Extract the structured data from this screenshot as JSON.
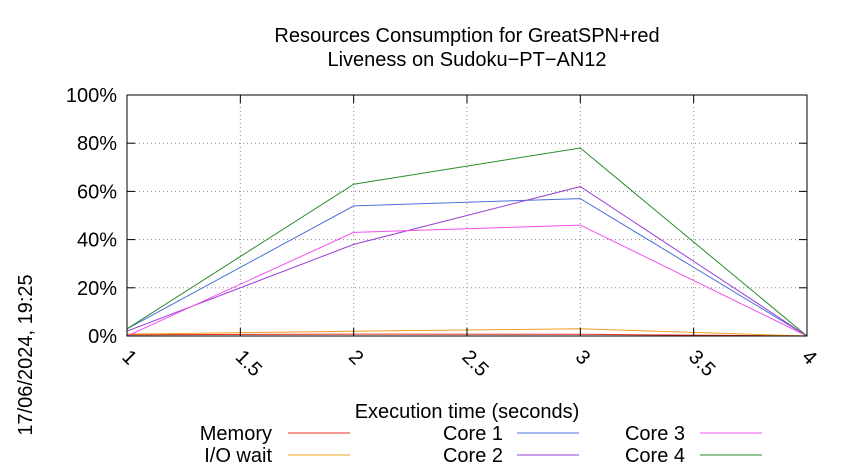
{
  "timestamp": "17/06/2024, 19:25",
  "chart_data": {
    "type": "line",
    "title_lines": [
      "Resources Consumption for GreatSPN+red",
      "Liveness on Sudoku−PT−AN12"
    ],
    "xlabel": "Execution time (seconds)",
    "ylabel": "",
    "xlim": [
      1,
      4
    ],
    "ylim": [
      0,
      100
    ],
    "x_ticks": [
      "1",
      "1.5",
      "2",
      "2.5",
      "3",
      "3.5",
      "4"
    ],
    "y_ticks": [
      "0%",
      "20%",
      "40%",
      "60%",
      "80%",
      "100%"
    ],
    "grid": true,
    "legend_placement": "bottom",
    "series": [
      {
        "name": "Memory",
        "color": "#e8311b",
        "x": [
          1,
          2,
          3,
          4
        ],
        "y": [
          0.5,
          0.8,
          0.7,
          0
        ]
      },
      {
        "name": "I/O wait",
        "color": "#f0a020",
        "x": [
          1,
          2,
          3,
          4
        ],
        "y": [
          0.8,
          2,
          3,
          0
        ]
      },
      {
        "name": "Core 1",
        "color": "#4a6fd8",
        "x": [
          1,
          2,
          3,
          4
        ],
        "y": [
          3,
          54,
          57,
          0
        ]
      },
      {
        "name": "Core 2",
        "color": "#9b3fd6",
        "x": [
          1,
          2,
          3,
          4
        ],
        "y": [
          2,
          38,
          62,
          0
        ]
      },
      {
        "name": "Core 3",
        "color": "#f050f0",
        "x": [
          1,
          2,
          3,
          4
        ],
        "y": [
          0,
          43,
          46,
          0
        ]
      },
      {
        "name": "Core 4",
        "color": "#2a8a2a",
        "x": [
          1,
          2,
          3,
          4
        ],
        "y": [
          3,
          63,
          78,
          0
        ]
      }
    ]
  }
}
